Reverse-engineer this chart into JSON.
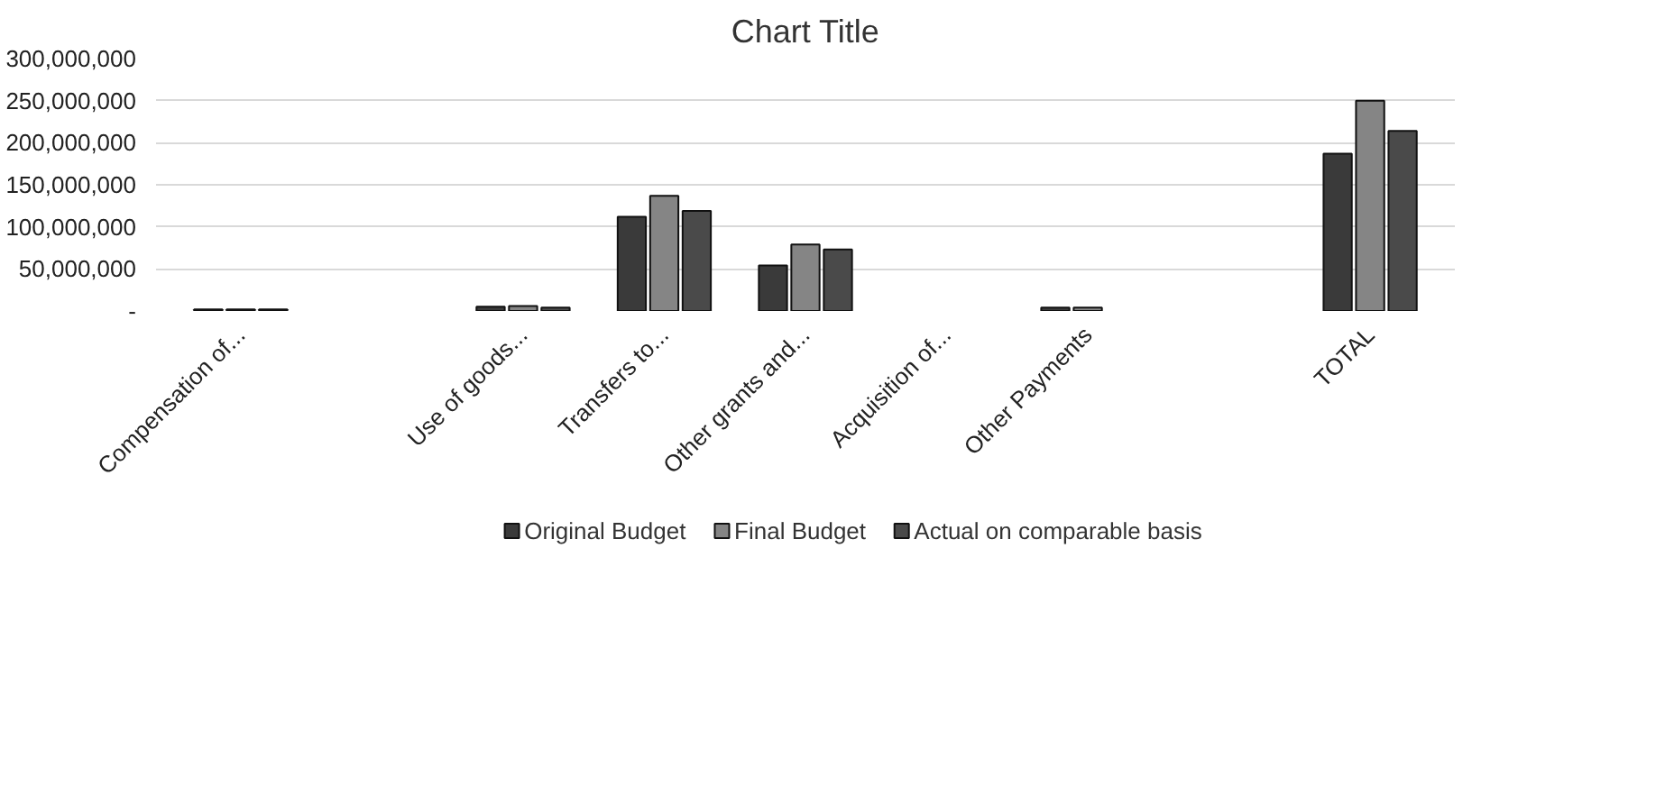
{
  "chart_data": {
    "type": "bar",
    "title": "Chart Title",
    "categories": [
      "Compensation of...",
      null,
      "Use of goods...",
      "Transfers to...",
      "Other grants and...",
      "Acquisition of...",
      "Other Payments",
      null,
      "TOTAL"
    ],
    "series": [
      {
        "name": "Original Budget",
        "color": "#3a3a3a",
        "values": [
          2000000,
          null,
          5000000,
          112000000,
          54000000,
          null,
          4000000,
          null,
          187000000
        ]
      },
      {
        "name": "Final Budget",
        "color": "#858585",
        "values": [
          2000000,
          null,
          6000000,
          137000000,
          79000000,
          null,
          4000000,
          null,
          250000000
        ]
      },
      {
        "name": "Actual on comparable basis",
        "color": "#4a4a4a",
        "values": [
          2000000,
          null,
          4000000,
          119000000,
          73000000,
          null,
          null,
          null,
          214000000
        ]
      }
    ],
    "ylim": [
      0,
      300000000
    ],
    "yticks": [
      {
        "value": 0,
        "label": "-"
      },
      {
        "value": 50000000,
        "label": "50,000,000"
      },
      {
        "value": 100000000,
        "label": "100,000,000"
      },
      {
        "value": 150000000,
        "label": "150,000,000"
      },
      {
        "value": 200000000,
        "label": "200,000,000"
      },
      {
        "value": 250000000,
        "label": "250,000,000"
      },
      {
        "value": 300000000,
        "label": "300,000,000"
      }
    ],
    "grid": "y",
    "legend": "bottom"
  }
}
